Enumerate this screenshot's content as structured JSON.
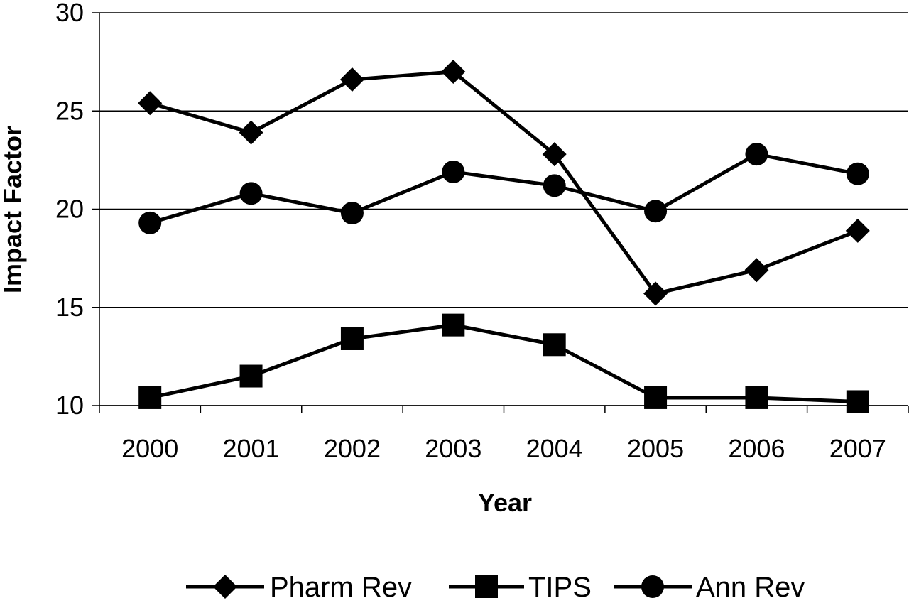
{
  "chart_data": {
    "type": "line",
    "title": "",
    "xlabel": "Year",
    "ylabel": "Impact Factor",
    "categories": [
      "2000",
      "2001",
      "2002",
      "2003",
      "2004",
      "2005",
      "2006",
      "2007"
    ],
    "ylim": [
      10,
      30
    ],
    "yticks": [
      "10",
      "15",
      "20",
      "25",
      "30"
    ],
    "grid": "horizontal",
    "legend_position": "bottom",
    "series": [
      {
        "name": "Pharm Rev",
        "marker": "diamond",
        "values": [
          25.4,
          23.9,
          26.6,
          27.0,
          22.8,
          15.7,
          16.9,
          18.9
        ]
      },
      {
        "name": "TIPS",
        "marker": "square",
        "values": [
          10.4,
          11.5,
          13.4,
          14.1,
          13.1,
          10.4,
          10.4,
          10.2
        ]
      },
      {
        "name": "Ann Rev",
        "marker": "circle",
        "values": [
          19.3,
          20.8,
          19.8,
          21.9,
          21.2,
          19.9,
          22.8,
          21.8
        ]
      }
    ],
    "colors": {
      "line": "#000000",
      "grid": "#000000",
      "background": "#ffffff"
    }
  }
}
